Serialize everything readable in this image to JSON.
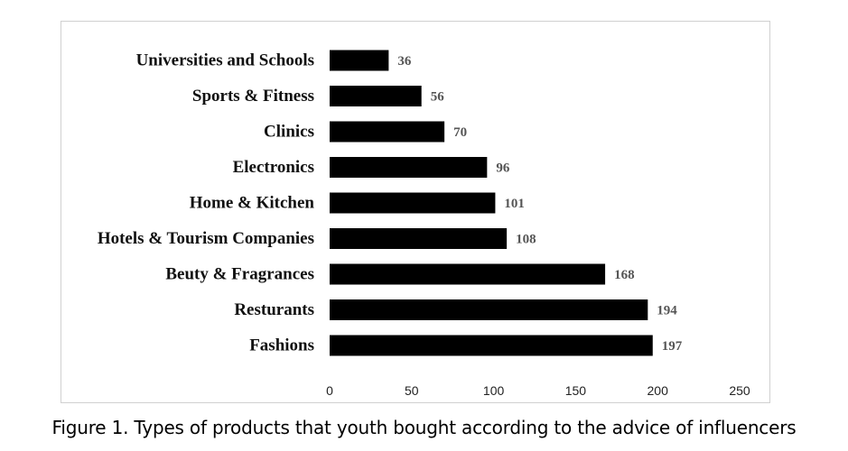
{
  "caption": "Figure 1. Types of products that youth bought according to the advice of influencers",
  "chart_data": {
    "type": "bar",
    "orientation": "horizontal",
    "categories": [
      "Universities and Schools",
      "Sports & Fitness",
      "Clinics",
      "Electronics",
      "Home & Kitchen",
      "Hotels & Tourism Companies",
      "Beuty & Fragrances",
      "Resturants",
      "Fashions"
    ],
    "values": [
      36,
      56,
      70,
      96,
      101,
      108,
      168,
      194,
      197
    ],
    "xticks": [
      0,
      50,
      100,
      150,
      200,
      250
    ],
    "xlim": [
      0,
      250
    ],
    "grid": false,
    "legend": "none",
    "bar_color": "#000000",
    "data_labels": true
  }
}
